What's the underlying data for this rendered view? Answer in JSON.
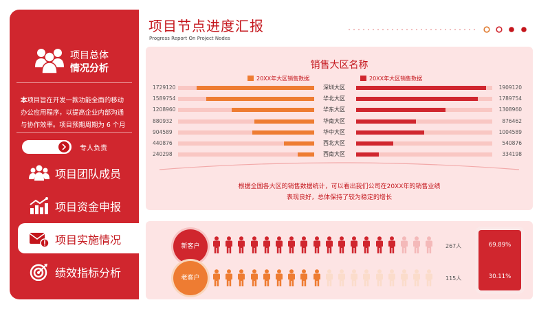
{
  "sidebar": {
    "header_title": [
      "项目总体",
      "情况分析"
    ],
    "description": {
      "prefix": "本",
      "body": "项目旨在开发一款功能全面的移动办公应用程序，以提高企业内部沟通与协作效率。项目预期周期为 6 个月"
    },
    "toggle_label": "专人负责",
    "nav": [
      {
        "label": "项目团队成员",
        "icon": "team-icon",
        "active": false
      },
      {
        "label": "项目资金申报",
        "icon": "funding-chart-icon",
        "active": false
      },
      {
        "label": "项目实施情况",
        "icon": "mail-alert-icon",
        "active": true
      },
      {
        "label": "绩效指标分析",
        "icon": "target-icon",
        "active": false
      }
    ]
  },
  "header": {
    "title": "项目节点进度汇报",
    "subtitle": "Progress Report On Project Nodes"
  },
  "chart": {
    "title": "销售大区名称",
    "summary_line1": "根据全国各大区的销售数据统计，可以看出我们公司在20XX年的销售业绩",
    "summary_line2": "表现良好，总体保持了较为稳定的增长"
  },
  "chart_data": {
    "type": "bar",
    "title": "销售大区名称",
    "categories": [
      "深圳大区",
      "华北大区",
      "华东大区",
      "华南大区",
      "华中大区",
      "西北大区",
      "西南大区"
    ],
    "series": [
      {
        "name": "20XX年大区销售数据",
        "values": [
          1729120,
          1589754,
          1208960,
          880932,
          904589,
          440876,
          240298
        ],
        "color": "#ee7c32"
      },
      {
        "name": "20XX年大区销售数据",
        "values": [
          1909120,
          1789754,
          1308960,
          876462,
          1004589,
          540876,
          334198
        ],
        "color": "#d0262e"
      }
    ],
    "left_labels": [
      "1729120",
      "1589754",
      "1208960",
      "880932",
      "904589",
      "440876",
      "240298"
    ],
    "right_labels": [
      "1909120",
      "1789754",
      "1308960",
      "876462",
      "1004589",
      "540876",
      "334198"
    ],
    "legend_placement": "top",
    "grid": false
  },
  "customers": {
    "new": {
      "label": "新客户",
      "count": "267人",
      "share": "69.89%",
      "filled": 15,
      "total": 18,
      "color": "#d0262e",
      "light": "#f4b9b9"
    },
    "old": {
      "label": "老客户",
      "count": "115人",
      "share": "30.11%",
      "filled": 9,
      "total": 18,
      "color": "#ee7c32",
      "light": "#fbdccb"
    }
  },
  "colors": {
    "accent": "#c4161c",
    "sidebar": "#d0262e",
    "orange": "#ee7c32",
    "panel": "#fde4e4"
  }
}
